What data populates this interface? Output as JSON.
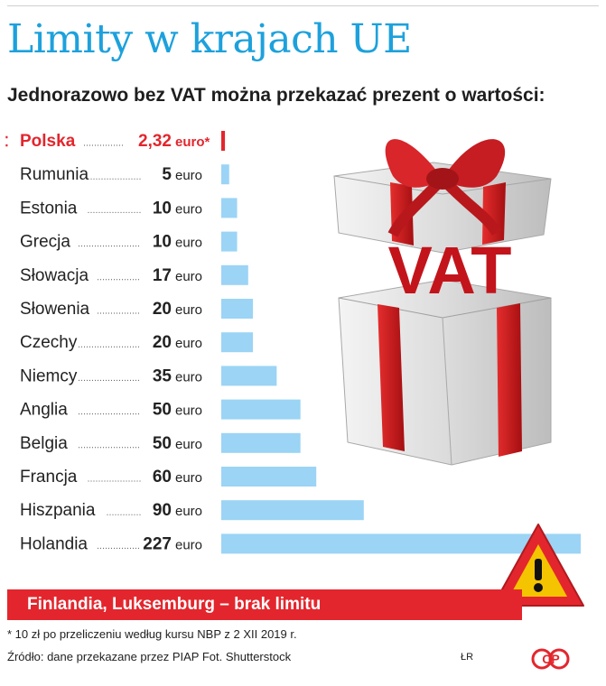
{
  "header": {
    "title": "Limity w krajach UE",
    "subtitle": "Jednorazowo bez VAT można przekazać prezent o wartości:"
  },
  "gift_label": "VAT",
  "colors": {
    "title": "#1da1dc",
    "highlight": "#e3262d",
    "bar": "#9bd4f5",
    "text": "#222222"
  },
  "chart_data": {
    "type": "bar",
    "orientation": "horizontal",
    "title": "Limity w krajach UE",
    "subtitle": "Jednorazowo bez VAT można przekazać prezent o wartości:",
    "unit": "euro",
    "categories": [
      "Polska",
      "Rumunia",
      "Estonia",
      "Grecja",
      "Słowacja",
      "Słowenia",
      "Czechy",
      "Niemcy",
      "Anglia",
      "Belgia",
      "Francja",
      "Hiszpania",
      "Holandia"
    ],
    "values": [
      2.32,
      5,
      10,
      10,
      17,
      20,
      20,
      35,
      50,
      50,
      60,
      90,
      227
    ],
    "value_labels": [
      "2,32",
      "5",
      "10",
      "10",
      "17",
      "20",
      "20",
      "35",
      "50",
      "50",
      "60",
      "90",
      "227"
    ],
    "unit_labels": [
      "euro*",
      "euro",
      "euro",
      "euro",
      "euro",
      "euro",
      "euro",
      "euro",
      "euro",
      "euro",
      "euro",
      "euro",
      "euro"
    ],
    "highlighted_category": "Polska",
    "xlim": [
      0,
      227
    ],
    "grid": false,
    "legend": "none"
  },
  "banner": {
    "text": "Finlandia, Luksemburg – brak limitu"
  },
  "footnote": "* 10 zł po przeliczeniu według kursu NBP z 2 XII 2019 r.",
  "source": "Źródło: dane przekazane przez PIAP    Fot. Shutterstock",
  "credit": "ŁR",
  "logo": {
    "text": "CP",
    "icon": "cp-logo"
  },
  "icons": {
    "gift": "gift-box-icon",
    "warning": "warning-triangle-icon"
  }
}
